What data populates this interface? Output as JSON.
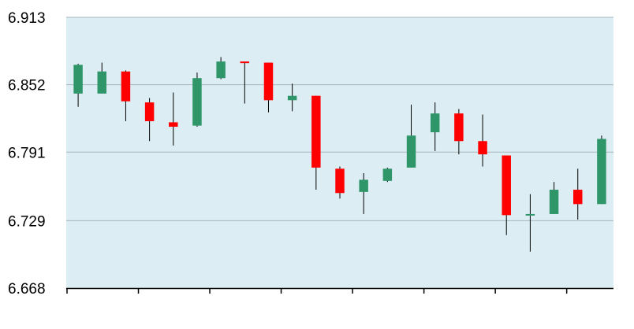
{
  "chart_data": {
    "type": "candlestick",
    "title": "",
    "xlabel": "",
    "ylabel": "",
    "ylim": [
      6.668,
      6.913
    ],
    "y_ticks": [
      "6.913",
      "6.852",
      "6.791",
      "6.729",
      "6.668"
    ],
    "grid": true,
    "legend": "none",
    "colors": {
      "plot_background": "#dcedf3",
      "up": "#2e9669",
      "down": "#ff0000",
      "grid": "#a9b5ba",
      "axis": "#000000"
    },
    "candles": [
      {
        "open": 6.844,
        "high": 6.871,
        "low": 6.832,
        "close": 6.87
      },
      {
        "open": 6.844,
        "high": 6.872,
        "low": 6.844,
        "close": 6.864
      },
      {
        "open": 6.864,
        "high": 6.865,
        "low": 6.819,
        "close": 6.837
      },
      {
        "open": 6.836,
        "high": 6.84,
        "low": 6.801,
        "close": 6.819
      },
      {
        "open": 6.818,
        "high": 6.845,
        "low": 6.797,
        "close": 6.814
      },
      {
        "open": 6.815,
        "high": 6.863,
        "low": 6.814,
        "close": 6.858
      },
      {
        "open": 6.858,
        "high": 6.877,
        "low": 6.857,
        "close": 6.873
      },
      {
        "open": 6.873,
        "high": 6.873,
        "low": 6.835,
        "close": 6.872
      },
      {
        "open": 6.872,
        "high": 6.872,
        "low": 6.827,
        "close": 6.838
      },
      {
        "open": 6.838,
        "high": 6.853,
        "low": 6.828,
        "close": 6.842
      },
      {
        "open": 6.842,
        "high": 6.842,
        "low": 6.757,
        "close": 6.777
      },
      {
        "open": 6.776,
        "high": 6.778,
        "low": 6.749,
        "close": 6.754
      },
      {
        "open": 6.755,
        "high": 6.772,
        "low": 6.735,
        "close": 6.766
      },
      {
        "open": 6.765,
        "high": 6.777,
        "low": 6.764,
        "close": 6.776
      },
      {
        "open": 6.777,
        "high": 6.834,
        "low": 6.777,
        "close": 6.806
      },
      {
        "open": 6.809,
        "high": 6.836,
        "low": 6.792,
        "close": 6.826
      },
      {
        "open": 6.826,
        "high": 6.83,
        "low": 6.789,
        "close": 6.801
      },
      {
        "open": 6.801,
        "high": 6.825,
        "low": 6.778,
        "close": 6.789
      },
      {
        "open": 6.788,
        "high": 6.788,
        "low": 6.716,
        "close": 6.734
      },
      {
        "open": 6.734,
        "high": 6.753,
        "low": 6.701,
        "close": 6.735
      },
      {
        "open": 6.735,
        "high": 6.764,
        "low": 6.735,
        "close": 6.757
      },
      {
        "open": 6.757,
        "high": 6.776,
        "low": 6.73,
        "close": 6.744
      },
      {
        "open": 6.744,
        "high": 6.806,
        "low": 6.744,
        "close": 6.803
      }
    ]
  }
}
